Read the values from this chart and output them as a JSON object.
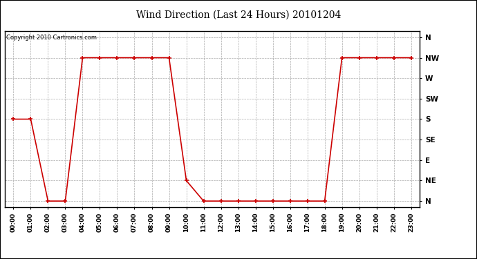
{
  "title": "Wind Direction (Last 24 Hours) 20101204",
  "copyright_text": "Copyright 2010 Cartronics.com",
  "background_color": "#ffffff",
  "plot_background_color": "#ffffff",
  "grid_color": "#aaaaaa",
  "line_color": "#cc0000",
  "marker_color": "#cc0000",
  "x_labels": [
    "00:00",
    "01:00",
    "02:00",
    "03:00",
    "04:00",
    "05:00",
    "06:00",
    "07:00",
    "08:00",
    "09:00",
    "10:00",
    "11:00",
    "12:00",
    "13:00",
    "14:00",
    "15:00",
    "16:00",
    "17:00",
    "18:00",
    "19:00",
    "20:00",
    "21:00",
    "22:00",
    "23:00"
  ],
  "y_ticks": [
    0,
    1,
    2,
    3,
    4,
    5,
    6,
    7,
    8
  ],
  "y_labels": [
    "N",
    "NE",
    "E",
    "SE",
    "S",
    "SW",
    "W",
    "NW",
    "N"
  ],
  "wind_data": [
    4,
    4,
    0,
    0,
    7,
    7,
    7,
    7,
    7,
    7,
    1,
    0,
    0,
    0,
    0,
    0,
    0,
    0,
    0,
    7,
    7,
    7,
    7,
    7
  ],
  "ylim": [
    -0.3,
    8.3
  ],
  "xlim": [
    -0.5,
    23.5
  ],
  "title_fontsize": 10,
  "tick_fontsize": 6.5,
  "ytick_fontsize": 7.5,
  "copyright_fontsize": 6,
  "border_color": "#000000"
}
